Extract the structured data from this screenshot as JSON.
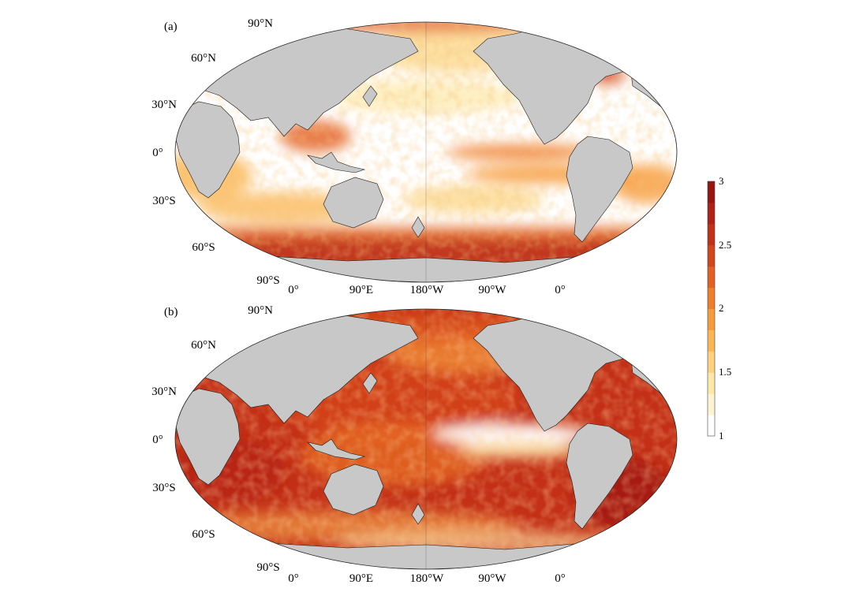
{
  "figure": {
    "colors": {
      "land": "#c8c8c8",
      "ocean_low": "#ffffff",
      "frame": "#222222",
      "scale": [
        "#ffffff",
        "#fef4cf",
        "#fde8a8",
        "#fcd17a",
        "#fbb553",
        "#f89a3a",
        "#f07d2a",
        "#e35f22",
        "#d5451b",
        "#c33017",
        "#b02015",
        "#9a1512"
      ]
    },
    "panels": [
      {
        "id": "a",
        "label": "(a)",
        "lat_labels": [
          "90°N",
          "60°N",
          "30°N",
          "0°",
          "30°S",
          "60°S",
          "90°S"
        ],
        "lon_labels": [
          "0°",
          "90°E",
          "180°W",
          "90°W",
          "0°"
        ]
      },
      {
        "id": "b",
        "label": "(b)",
        "lat_labels": [
          "90°N",
          "60°N",
          "30°N",
          "0°",
          "30°S",
          "60°S",
          "90°S"
        ],
        "lon_labels": [
          "0°",
          "90°E",
          "180°W",
          "90°W",
          "0°"
        ]
      }
    ],
    "colorbar": {
      "min": 1,
      "max": 3,
      "ticks": [
        "1",
        "1.5",
        "2",
        "2.5",
        "3"
      ]
    }
  }
}
